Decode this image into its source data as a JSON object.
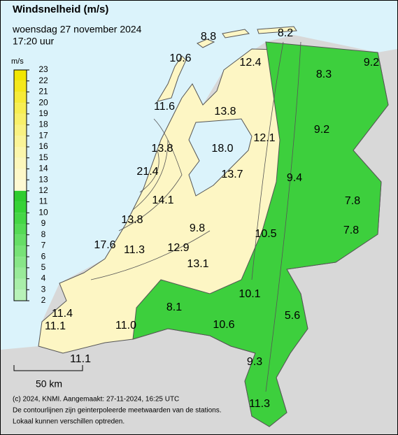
{
  "header": {
    "title": "Windsnelheid (m/s)",
    "date": "woensdag 27 november 2024",
    "time": "17:20 uur"
  },
  "legend": {
    "unit": "m/s",
    "levels": [
      23,
      22,
      21,
      20,
      19,
      18,
      17,
      16,
      15,
      14,
      13,
      12,
      11,
      10,
      9,
      8,
      7,
      6,
      5,
      4,
      3,
      2
    ],
    "colors": [
      "#f2e600",
      "#f4e81c",
      "#f6eb38",
      "#f7ee52",
      "#f8f06a",
      "#f9f282",
      "#faf497",
      "#fbf6ab",
      "#fcf7bb",
      "#fdf8c8",
      "#fef9d3",
      "#2fcc2f",
      "#36d236",
      "#45d645",
      "#55da55",
      "#66de66",
      "#77e277",
      "#88e688",
      "#99ea99",
      "#a9eea9",
      "#b8f2b8"
    ]
  },
  "stations": [
    "8.8",
    "8.2",
    "10.6",
    "12.4",
    "8.3",
    "9.2",
    "11.6",
    "13.8",
    "12.1",
    "9.2",
    "13.8",
    "18.0",
    "21.4",
    "13.7",
    "9.4",
    "14.1",
    "7.8",
    "13.8",
    "9.8",
    "7.8",
    "10.5",
    "17.6",
    "11.3",
    "12.9",
    "13.1",
    "10.1",
    "8.1",
    "5.6",
    "11.4",
    "11.1",
    "11.0",
    "10.6",
    "9.3",
    "11.1",
    "11.3"
  ],
  "scale_bar": "50 km",
  "footer": [
    "(c) 2024, KNMI. Aangemaakt: 27-11-2024, 16:25 UTC",
    "De contourlijnen zijn geinterpoleerde meetwaarden van de stations.",
    "Lokaal kunnen verschillen optreden."
  ]
}
